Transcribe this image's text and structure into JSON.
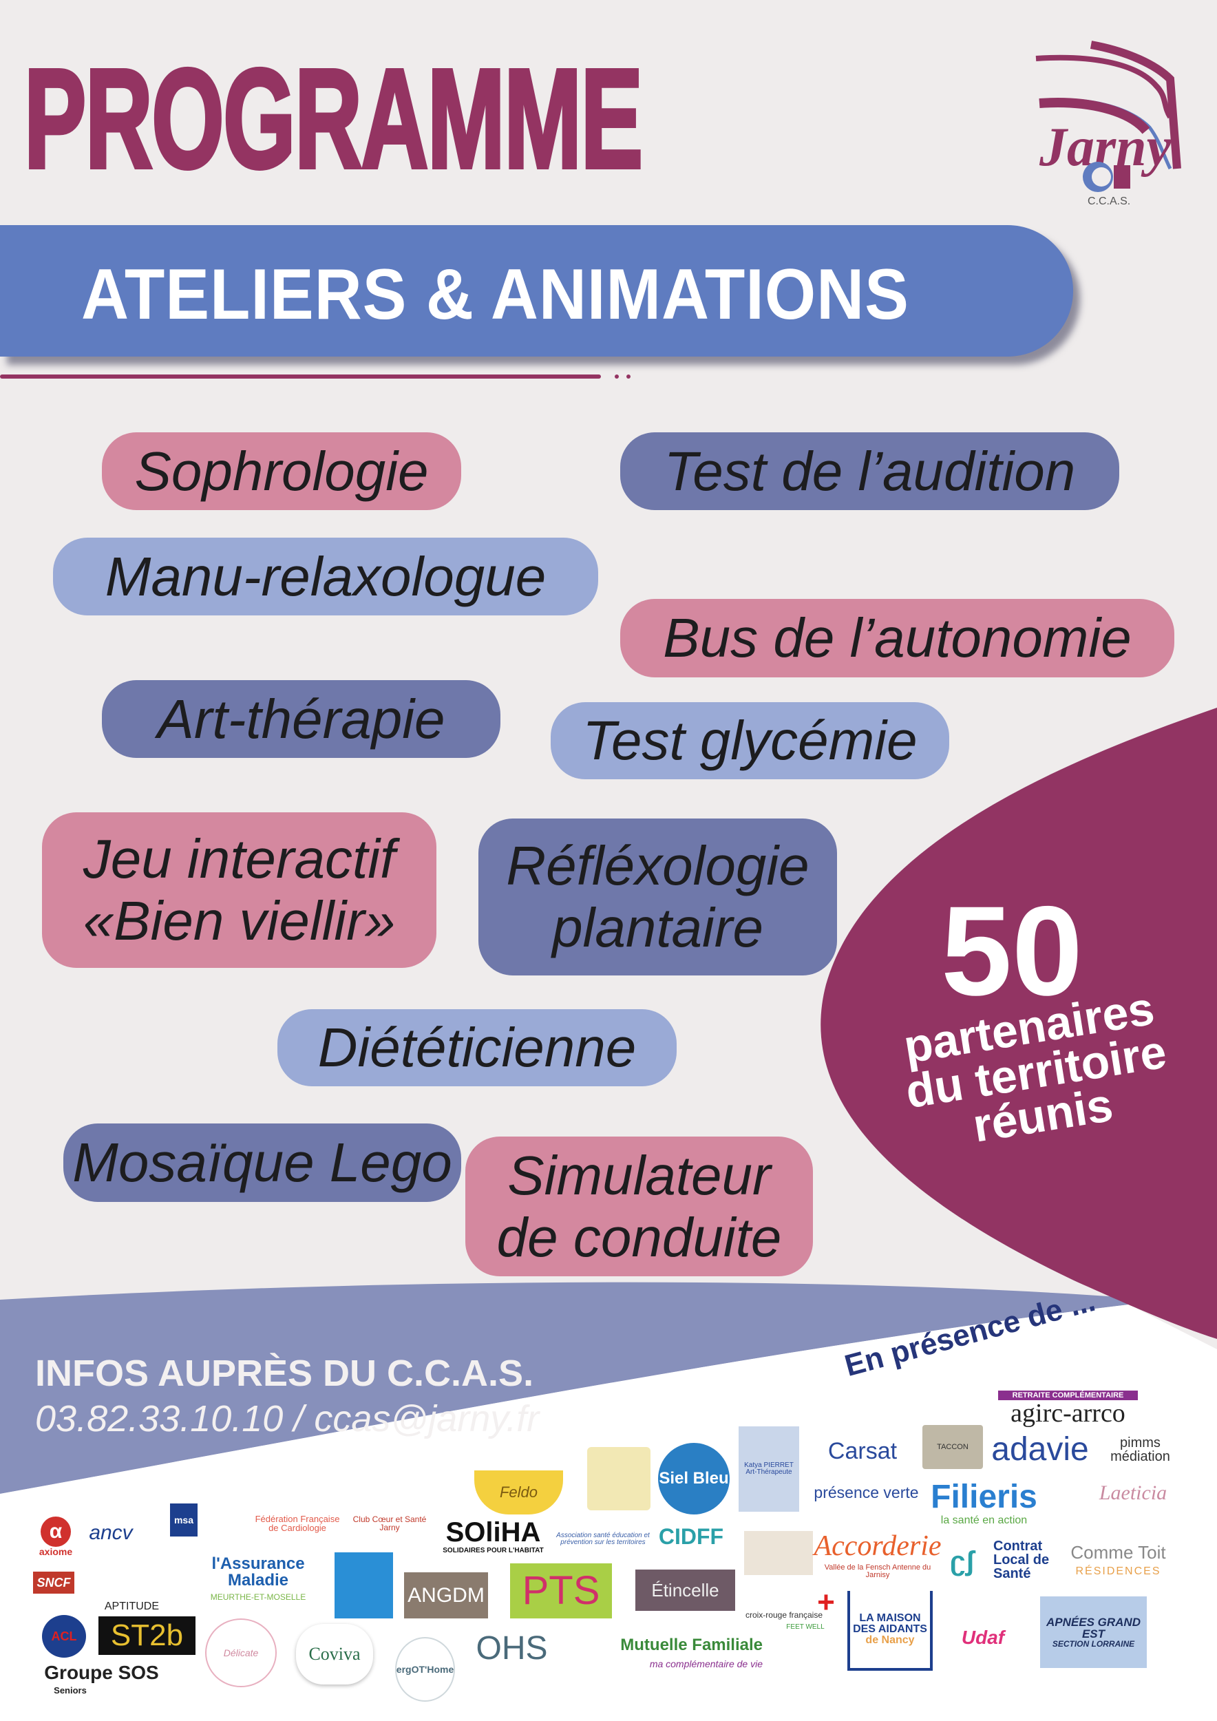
{
  "header": {
    "title": "PROGRAMME",
    "logo_text": "Jarny",
    "logo_sub": "C.C.A.S."
  },
  "banner": {
    "title": "ATELIERS & ANIMATIONS"
  },
  "workshops": [
    {
      "label": "Sophrologie",
      "color": "#d4889f"
    },
    {
      "label": "Test de l’audition",
      "color": "#6f78aa"
    },
    {
      "label": "Manu-relaxologue",
      "color": "#9aaad6"
    },
    {
      "label": "Bus de l’autonomie",
      "color": "#d4889f"
    },
    {
      "label": "Art-thérapie",
      "color": "#6f78aa"
    },
    {
      "label": "Test glycémie",
      "color": "#9aaad6"
    },
    {
      "label": "Jeu interactif",
      "label2": "«Bien viellir»",
      "color": "#d4889f"
    },
    {
      "label": "Réfléxologie",
      "label2": "plantaire",
      "color": "#6f78aa"
    },
    {
      "label": "Diététicienne",
      "color": "#9aaad6"
    },
    {
      "label": "Mosaïque Lego",
      "color": "#6f78aa"
    },
    {
      "label": "Simulateur",
      "label2": "de conduite",
      "color": "#d4889f"
    }
  ],
  "partners_callout": {
    "count": "50",
    "line1": "partenaires",
    "line2": "du territoire",
    "line3": "réunis",
    "color": "#923463"
  },
  "footer": {
    "infos": "INFOS AUPRÈS DU C.C.A.S.",
    "contact": "03.82.33.10.10 / ccas@jarny.fr",
    "presence": "En présence de ...",
    "band_color": "#8790bb"
  },
  "partner_logos": [
    "agirc-arrco",
    "RETRAITE COMPLÉMENTAIRE",
    "Carsat",
    "TACCON",
    "adavie",
    "pimms médiation",
    "présence verte",
    "Filieris",
    "la santé en action",
    "Laeticia",
    "Siel Bleu",
    "Katya PIERRET Art-Thérapeute",
    "Feldo",
    "axiome",
    "ancv",
    "msa",
    "Fédération Française de Cardiologie",
    "Club Cœur et Santé Jarny",
    "SOliHA",
    "SOLIDAIRES POUR L'HABITAT",
    "Association santé éducation et prévention sur les territoires",
    "CIDFF",
    "Accorderie",
    "Vallée de la Fensch Antenne du Jarnisy",
    "Contrat Local de Santé",
    "Comme Toit",
    "RÉSIDENCES",
    "SNCF",
    "APTITUDE",
    "l'Assurance Maladie",
    "MEURTHE-ET-MOSELLE",
    "ANGDM",
    "PTS",
    "Étincelle",
    "croix-rouge française",
    "LA MAISON DES AIDANTS",
    "de Nancy",
    "Udaf",
    "APNÉES GRAND EST",
    "SECTION LORRAINE",
    "ACL",
    "ST2b",
    "Groupe SOS",
    "Seniors",
    "Délicate",
    "Coviva",
    "ergOT'Home",
    "OHS",
    "Mutuelle Familiale",
    "ma complémentaire de vie",
    "FEET WELL"
  ]
}
